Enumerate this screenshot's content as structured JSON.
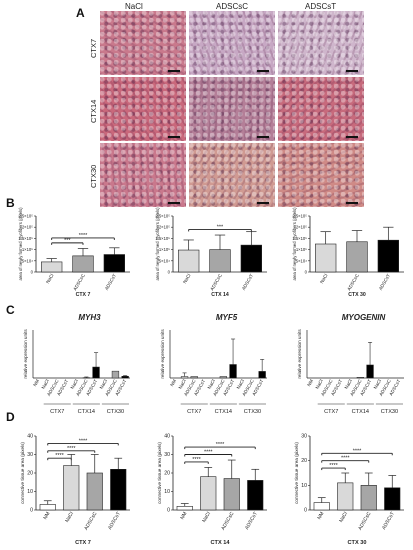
{
  "panel_labels": {
    "a": "A",
    "b": "B",
    "c": "C",
    "d": "D"
  },
  "histology": {
    "columns": [
      "NaCl",
      "ADSCsC",
      "ADSCsT"
    ],
    "rows": [
      "CTX7",
      "CTX14",
      "CTX30"
    ],
    "tiles": [
      [
        "#c9798c",
        "#c7a8c4",
        "#cfb6cc"
      ],
      [
        "#c9687b",
        "#b47f98",
        "#c76a7c"
      ],
      [
        "#c9788c",
        "#d09a92",
        "#cf8a86"
      ]
    ]
  },
  "chart_data": [
    {
      "type": "bar",
      "panel": "B",
      "xlabel": "CTX 7",
      "ylabel": "area of newly formed myofibers (pixels)",
      "categories": [
        "NaCl",
        "ADSCsC",
        "ADSCsT"
      ],
      "values": [
        45000,
        72000,
        78000
      ],
      "errors": [
        15000,
        33000,
        30000
      ],
      "ylim": [
        0,
        250000
      ],
      "yticks": [
        {
          "v": 0,
          "t": "0"
        },
        {
          "v": 50000,
          "t": "5×10⁴"
        },
        {
          "v": 100000,
          "t": "1×10⁵"
        },
        {
          "v": 150000,
          "t": "1.5×10⁵"
        },
        {
          "v": 200000,
          "t": "2×10⁵"
        },
        {
          "v": 250000,
          "t": "2.5×10⁵"
        }
      ],
      "colors": [
        "#d9d9d9",
        "#a6a6a6",
        "#000000"
      ],
      "sig": [
        {
          "from": 0,
          "to": 1,
          "level": 130000,
          "label": "***"
        },
        {
          "from": 0,
          "to": 2,
          "level": 152000,
          "label": "****"
        }
      ]
    },
    {
      "type": "bar",
      "panel": "B",
      "xlabel": "CTX 14",
      "ylabel": "area of newly formed myofibers (pixels)",
      "categories": [
        "NaCl",
        "ADSCsC",
        "ADSCsT"
      ],
      "values": [
        98000,
        100000,
        120000
      ],
      "errors": [
        45000,
        65000,
        60000
      ],
      "ylim": [
        0,
        250000
      ],
      "yticks": [
        {
          "v": 0,
          "t": "0"
        },
        {
          "v": 50000,
          "t": "5×10⁴"
        },
        {
          "v": 100000,
          "t": "1×10⁵"
        },
        {
          "v": 150000,
          "t": "1.5×10⁵"
        },
        {
          "v": 200000,
          "t": "2×10⁵"
        },
        {
          "v": 250000,
          "t": "2.5×10⁵"
        }
      ],
      "colors": [
        "#d9d9d9",
        "#a6a6a6",
        "#000000"
      ],
      "sig": [
        {
          "from": 0,
          "to": 2,
          "level": 190000,
          "label": "***"
        }
      ]
    },
    {
      "type": "bar",
      "panel": "B",
      "xlabel": "CTX 30",
      "ylabel": "area of newly formed myofibers (pixels)",
      "categories": [
        "NaCl",
        "ADSCsC",
        "ADSCsT"
      ],
      "values": [
        125000,
        135000,
        142000
      ],
      "errors": [
        55000,
        50000,
        58000
      ],
      "ylim": [
        0,
        250000
      ],
      "yticks": [
        {
          "v": 0,
          "t": "0"
        },
        {
          "v": 50000,
          "t": "5×10⁴"
        },
        {
          "v": 100000,
          "t": "1×10⁵"
        },
        {
          "v": 150000,
          "t": "1.5×10⁵"
        },
        {
          "v": 200000,
          "t": "2×10⁵"
        },
        {
          "v": 250000,
          "t": "2.5×10⁵"
        }
      ],
      "colors": [
        "#d9d9d9",
        "#a6a6a6",
        "#000000"
      ],
      "sig": []
    },
    {
      "type": "bar",
      "panel": "C",
      "title": "MYH3",
      "ylabel": "relative expression units",
      "categories": [
        "NM",
        "NaCl",
        "ADSCsC",
        "ADSCsT",
        "NaCl",
        "ADSCsC",
        "ADSCsT",
        "NaCl",
        "ADSCsC",
        "ADSCsT"
      ],
      "values": [
        0,
        0,
        0,
        0,
        0,
        0.1,
        3.2,
        0,
        2.0,
        0.5
      ],
      "errors": [
        0,
        0,
        0,
        0,
        0,
        0.2,
        4.2,
        0,
        0,
        0.2
      ],
      "colors": [
        "#ffffff",
        "#d9d9d9",
        "#a6a6a6",
        "#000000",
        "#d9d9d9",
        "#a6a6a6",
        "#000000",
        "#d9d9d9",
        "#a6a6a6",
        "#000000"
      ],
      "groups": [
        {
          "label": "CTX7",
          "start": 1,
          "end": 3
        },
        {
          "label": "CTX14",
          "start": 4,
          "end": 6
        },
        {
          "label": "CTX30",
          "start": 7,
          "end": 9
        }
      ],
      "ymax": 14
    },
    {
      "type": "bar",
      "panel": "C",
      "title": "MYF5",
      "ylabel": "relative expression units",
      "categories": [
        "NM",
        "NaCl",
        "ADSCsC",
        "ADSCsT",
        "NaCl",
        "ADSCsC",
        "ADSCsT",
        "NaCl",
        "ADSCsC",
        "ADSCsT"
      ],
      "values": [
        0,
        0.05,
        0.05,
        0,
        0,
        0.05,
        0.45,
        0,
        0,
        0.22
      ],
      "errors": [
        0,
        0.12,
        0,
        0,
        0,
        0,
        0.85,
        0,
        0,
        0.4
      ],
      "colors": [
        "#ffffff",
        "#d9d9d9",
        "#a6a6a6",
        "#000000",
        "#d9d9d9",
        "#a6a6a6",
        "#000000",
        "#d9d9d9",
        "#a6a6a6",
        "#000000"
      ],
      "groups": [
        {
          "label": "CTX7",
          "start": 1,
          "end": 3
        },
        {
          "label": "CTX14",
          "start": 4,
          "end": 6
        },
        {
          "label": "CTX30",
          "start": 7,
          "end": 9
        }
      ],
      "ymax": 1.6
    },
    {
      "type": "bar",
      "panel": "C",
      "title": "MYOGENIN",
      "ylabel": "relative expression units",
      "categories": [
        "NM",
        "NaCl",
        "ADSCsC",
        "ADSCsT",
        "NaCl",
        "ADSCsC",
        "ADSCsT",
        "NaCl",
        "ADSCsC",
        "ADSCsT"
      ],
      "values": [
        0,
        0,
        0,
        0,
        0,
        0.2,
        3.8,
        0,
        0,
        0
      ],
      "errors": [
        0,
        0,
        0,
        0,
        0,
        0,
        6.6,
        0,
        0,
        0
      ],
      "colors": [
        "#ffffff",
        "#d9d9d9",
        "#a6a6a6",
        "#000000",
        "#d9d9d9",
        "#a6a6a6",
        "#000000",
        "#d9d9d9",
        "#a6a6a6",
        "#000000"
      ],
      "groups": [
        {
          "label": "CTX7",
          "start": 1,
          "end": 3
        },
        {
          "label": "CTX14",
          "start": 4,
          "end": 6
        },
        {
          "label": "CTX30",
          "start": 7,
          "end": 9
        }
      ],
      "ymax": 14
    },
    {
      "type": "bar",
      "panel": "D",
      "xlabel": "CTX 7",
      "ylabel": "connective tissue area (pixels)",
      "categories": [
        "NM",
        "NaCl",
        "ADSCsC",
        "ADSCsT"
      ],
      "values": [
        3,
        24,
        20,
        22
      ],
      "errors": [
        2,
        6,
        10,
        6
      ],
      "ylim": [
        0,
        40
      ],
      "yticks": [
        {
          "v": 0,
          "t": "0"
        },
        {
          "v": 10,
          "t": "10"
        },
        {
          "v": 20,
          "t": "20"
        },
        {
          "v": 30,
          "t": "30"
        },
        {
          "v": 40,
          "t": "40"
        }
      ],
      "colors": [
        "#ffffff",
        "#d9d9d9",
        "#a6a6a6",
        "#000000"
      ],
      "sig": [
        {
          "from": 0,
          "to": 1,
          "level": 28,
          "label": "****"
        },
        {
          "from": 0,
          "to": 2,
          "level": 32,
          "label": "****"
        },
        {
          "from": 0,
          "to": 3,
          "level": 36,
          "label": "****"
        }
      ]
    },
    {
      "type": "bar",
      "panel": "D",
      "xlabel": "CTX 14",
      "ylabel": "connective tissue area (pixels)",
      "categories": [
        "NM",
        "NaCl",
        "ADSCsC",
        "ADSCsT"
      ],
      "values": [
        2,
        18,
        17,
        16
      ],
      "errors": [
        1.5,
        5,
        10,
        6
      ],
      "ylim": [
        0,
        40
      ],
      "yticks": [
        {
          "v": 0,
          "t": "0"
        },
        {
          "v": 10,
          "t": "10"
        },
        {
          "v": 20,
          "t": "20"
        },
        {
          "v": 30,
          "t": "30"
        },
        {
          "v": 40,
          "t": "40"
        }
      ],
      "colors": [
        "#ffffff",
        "#d9d9d9",
        "#a6a6a6",
        "#000000"
      ],
      "sig": [
        {
          "from": 0,
          "to": 1,
          "level": 26,
          "label": "****"
        },
        {
          "from": 0,
          "to": 2,
          "level": 30,
          "label": "****"
        },
        {
          "from": 0,
          "to": 3,
          "level": 34,
          "label": "****"
        }
      ]
    },
    {
      "type": "bar",
      "panel": "D",
      "xlabel": "CTX 30",
      "ylabel": "connective tissue area (pixels)",
      "categories": [
        "NM",
        "NaCl",
        "ADSCsC",
        "ADSCsT"
      ],
      "values": [
        3,
        11,
        10,
        9
      ],
      "errors": [
        2,
        4,
        5,
        5
      ],
      "ylim": [
        0,
        30
      ],
      "yticks": [
        {
          "v": 0,
          "t": "0"
        },
        {
          "v": 10,
          "t": "10"
        },
        {
          "v": 20,
          "t": "20"
        },
        {
          "v": 30,
          "t": "30"
        }
      ],
      "colors": [
        "#ffffff",
        "#d9d9d9",
        "#a6a6a6",
        "#000000"
      ],
      "sig": [
        {
          "from": 0,
          "to": 1,
          "level": 17,
          "label": "****"
        },
        {
          "from": 0,
          "to": 2,
          "level": 20,
          "label": "****"
        },
        {
          "from": 0,
          "to": 3,
          "level": 23,
          "label": "****"
        }
      ]
    }
  ]
}
